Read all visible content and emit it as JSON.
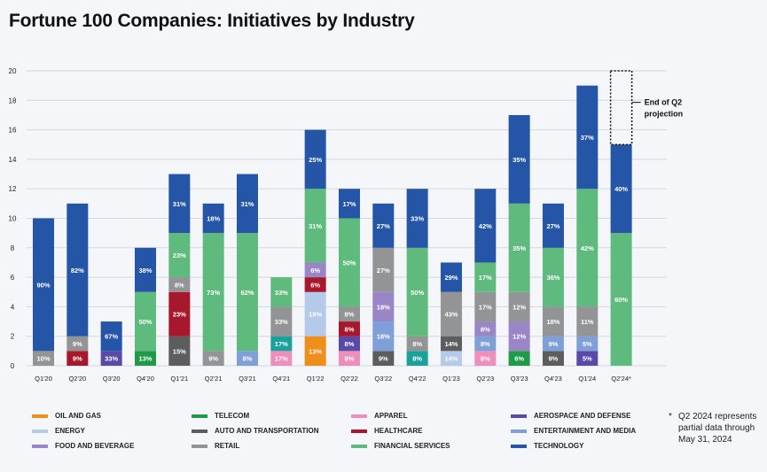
{
  "chart_data": {
    "type": "bar",
    "stacked": true,
    "title": "Fortune 100 Companies: Initiatives by Industry",
    "xlabel": "",
    "ylabel": "",
    "ylim": [
      0,
      20
    ],
    "yticks": [
      0,
      2,
      4,
      6,
      8,
      10,
      12,
      14,
      16,
      18,
      20
    ],
    "grid": true,
    "legend_position": "bottom",
    "categories": [
      "Q1'20",
      "Q2'20",
      "Q3'20",
      "Q4'20",
      "Q1'21",
      "Q2'21",
      "Q3'21",
      "Q4'21",
      "Q1'22",
      "Q2'22",
      "Q3'22",
      "Q4'22",
      "Q1'23",
      "Q2'23",
      "Q3'23",
      "Q4'23",
      "Q1'24",
      "Q2'24*"
    ],
    "industries": [
      {
        "key": "oil",
        "name": "OIL AND GAS",
        "color": "#ef8e1b"
      },
      {
        "key": "energy",
        "name": "ENERGY",
        "color": "#b5c9e8"
      },
      {
        "key": "food",
        "name": "FOOD AND BEVERAGE",
        "color": "#9a86c6"
      },
      {
        "key": "telecom",
        "name": "TELECOM",
        "color": "#1f9a48"
      },
      {
        "key": "auto",
        "name": "AUTO AND TRANSPORTATION",
        "color": "#5d5d5f"
      },
      {
        "key": "retail",
        "name": "RETAIL",
        "color": "#939496"
      },
      {
        "key": "apparel",
        "name": "APPAREL",
        "color": "#ee8fbb"
      },
      {
        "key": "healthcare",
        "name": "HEALTHCARE",
        "color": "#a8182c"
      },
      {
        "key": "financial",
        "name": "FINANCIAL SERVICES",
        "color": "#5fbb7d"
      },
      {
        "key": "aerospace",
        "name": "AEROSPACE AND DEFENSE",
        "color": "#5a4aa8"
      },
      {
        "key": "entertainment",
        "name": "ENTERTAINMENT AND MEDIA",
        "color": "#7f9fd8"
      },
      {
        "key": "technology",
        "name": "TECHNOLOGY",
        "color": "#2555a6"
      },
      {
        "key": "teal",
        "name": "",
        "color": "#1aa19b"
      }
    ],
    "bars": [
      {
        "category": "Q1'20",
        "segments": [
          {
            "key": "retail",
            "value": 1,
            "label": "10%"
          },
          {
            "key": "technology",
            "value": 9,
            "label": "90%"
          }
        ]
      },
      {
        "category": "Q2'20",
        "segments": [
          {
            "key": "healthcare",
            "value": 1,
            "label": "9%"
          },
          {
            "key": "retail",
            "value": 1,
            "label": "9%"
          },
          {
            "key": "technology",
            "value": 9,
            "label": "82%"
          }
        ]
      },
      {
        "category": "Q3'20",
        "segments": [
          {
            "key": "aerospace",
            "value": 1,
            "label": "33%"
          },
          {
            "key": "technology",
            "value": 2,
            "label": "67%"
          }
        ]
      },
      {
        "category": "Q4'20",
        "segments": [
          {
            "key": "telecom",
            "value": 1,
            "label": "13%"
          },
          {
            "key": "financial",
            "value": 4,
            "label": "50%"
          },
          {
            "key": "technology",
            "value": 3,
            "label": "38%"
          }
        ]
      },
      {
        "category": "Q1'21",
        "segments": [
          {
            "key": "auto",
            "value": 2,
            "label": "15%"
          },
          {
            "key": "healthcare",
            "value": 3,
            "label": "23%"
          },
          {
            "key": "retail",
            "value": 1,
            "label": "8%"
          },
          {
            "key": "financial",
            "value": 3,
            "label": "23%"
          },
          {
            "key": "technology",
            "value": 4,
            "label": "31%"
          }
        ]
      },
      {
        "category": "Q2'21",
        "segments": [
          {
            "key": "retail",
            "value": 1,
            "label": "9%"
          },
          {
            "key": "financial",
            "value": 8,
            "label": "73%"
          },
          {
            "key": "technology",
            "value": 2,
            "label": "18%"
          }
        ]
      },
      {
        "category": "Q3'21",
        "segments": [
          {
            "key": "entertainment",
            "value": 1,
            "label": "8%"
          },
          {
            "key": "financial",
            "value": 8,
            "label": "62%"
          },
          {
            "key": "technology",
            "value": 4,
            "label": "31%"
          }
        ]
      },
      {
        "category": "Q4'21",
        "segments": [
          {
            "key": "apparel",
            "value": 1,
            "label": "17%"
          },
          {
            "key": "teal",
            "value": 1,
            "label": "17%"
          },
          {
            "key": "retail",
            "value": 2,
            "label": "33%"
          },
          {
            "key": "financial",
            "value": 2,
            "label": "33%"
          }
        ]
      },
      {
        "category": "Q1'22",
        "segments": [
          {
            "key": "oil",
            "value": 2,
            "label": "13%"
          },
          {
            "key": "energy",
            "value": 3,
            "label": "19%"
          },
          {
            "key": "healthcare",
            "value": 1,
            "label": "6%"
          },
          {
            "key": "food",
            "value": 1,
            "label": "6%"
          },
          {
            "key": "financial",
            "value": 5,
            "label": "31%"
          },
          {
            "key": "technology",
            "value": 4,
            "label": "25%"
          }
        ]
      },
      {
        "category": "Q2'22",
        "segments": [
          {
            "key": "apparel",
            "value": 1,
            "label": "8%"
          },
          {
            "key": "aerospace",
            "value": 1,
            "label": "8%"
          },
          {
            "key": "healthcare",
            "value": 1,
            "label": "8%"
          },
          {
            "key": "retail",
            "value": 1,
            "label": "8%"
          },
          {
            "key": "financial",
            "value": 6,
            "label": "50%"
          },
          {
            "key": "technology",
            "value": 2,
            "label": "17%"
          }
        ]
      },
      {
        "category": "Q3'22",
        "segments": [
          {
            "key": "auto",
            "value": 1,
            "label": "9%"
          },
          {
            "key": "entertainment",
            "value": 2,
            "label": "18%"
          },
          {
            "key": "food",
            "value": 2,
            "label": "18%"
          },
          {
            "key": "retail",
            "value": 3,
            "label": "27%"
          },
          {
            "key": "technology",
            "value": 3,
            "label": "27%"
          }
        ]
      },
      {
        "category": "Q4'22",
        "segments": [
          {
            "key": "teal",
            "value": 1,
            "label": "8%"
          },
          {
            "key": "retail",
            "value": 1,
            "label": "8%"
          },
          {
            "key": "financial",
            "value": 6,
            "label": "50%"
          },
          {
            "key": "technology",
            "value": 4,
            "label": "33%"
          }
        ]
      },
      {
        "category": "Q1'23",
        "segments": [
          {
            "key": "energy",
            "value": 1,
            "label": "14%"
          },
          {
            "key": "auto",
            "value": 1,
            "label": "14%"
          },
          {
            "key": "retail",
            "value": 3,
            "label": "43%"
          },
          {
            "key": "technology",
            "value": 2,
            "label": "29%"
          }
        ]
      },
      {
        "category": "Q2'23",
        "segments": [
          {
            "key": "apparel",
            "value": 1,
            "label": "8%"
          },
          {
            "key": "entertainment",
            "value": 1,
            "label": "8%"
          },
          {
            "key": "food",
            "value": 1,
            "label": "8%"
          },
          {
            "key": "retail",
            "value": 2,
            "label": "17%"
          },
          {
            "key": "financial",
            "value": 2,
            "label": "17%"
          },
          {
            "key": "technology",
            "value": 5,
            "label": "42%"
          }
        ]
      },
      {
        "category": "Q3'23",
        "segments": [
          {
            "key": "telecom",
            "value": 1,
            "label": "6%"
          },
          {
            "key": "food",
            "value": 2,
            "label": "12%"
          },
          {
            "key": "retail",
            "value": 2,
            "label": "12%"
          },
          {
            "key": "financial",
            "value": 6,
            "label": "35%"
          },
          {
            "key": "technology",
            "value": 6,
            "label": "35%"
          }
        ]
      },
      {
        "category": "Q4'23",
        "segments": [
          {
            "key": "auto",
            "value": 1,
            "label": "9%"
          },
          {
            "key": "entertainment",
            "value": 1,
            "label": "9%"
          },
          {
            "key": "retail",
            "value": 2,
            "label": "18%"
          },
          {
            "key": "financial",
            "value": 4,
            "label": "36%"
          },
          {
            "key": "technology",
            "value": 3,
            "label": "27%"
          }
        ]
      },
      {
        "category": "Q1'24",
        "segments": [
          {
            "key": "aerospace",
            "value": 1,
            "label": "5%"
          },
          {
            "key": "entertainment",
            "value": 1,
            "label": "5%"
          },
          {
            "key": "retail",
            "value": 2,
            "label": "11%"
          },
          {
            "key": "financial",
            "value": 8,
            "label": "42%"
          },
          {
            "key": "technology",
            "value": 7,
            "label": "37%"
          }
        ]
      },
      {
        "category": "Q2'24*",
        "segments": [
          {
            "key": "financial",
            "value": 9,
            "label": "60%"
          },
          {
            "key": "technology",
            "value": 6,
            "label": "40%"
          }
        ]
      }
    ],
    "projection": {
      "category": "Q2'24*",
      "from": 15,
      "to": 20,
      "label_line1": "End of Q2",
      "label_line2": "projection"
    },
    "footnote": {
      "marker": "*",
      "text": "Q2 2024 represents partial data through May 31, 2024"
    }
  },
  "legend": [
    {
      "name": "OIL AND GAS",
      "color": "#ef8e1b"
    },
    {
      "name": "ENERGY",
      "color": "#b5c9e8"
    },
    {
      "name": "FOOD AND BEVERAGE",
      "color": "#9a86c6"
    },
    {
      "name": "TELECOM",
      "color": "#1f9a48"
    },
    {
      "name": "AUTO AND TRANSPORTATION",
      "color": "#5d5d5f"
    },
    {
      "name": "RETAIL",
      "color": "#939496"
    },
    {
      "name": "APPAREL",
      "color": "#ee8fbb"
    },
    {
      "name": "HEALTHCARE",
      "color": "#a8182c"
    },
    {
      "name": "FINANCIAL SERVICES",
      "color": "#5fbb7d"
    },
    {
      "name": "AEROSPACE AND DEFENSE",
      "color": "#5a4aa8"
    },
    {
      "name": "ENTERTAINMENT AND MEDIA",
      "color": "#7f9fd8"
    },
    {
      "name": "TECHNOLOGY",
      "color": "#2555a6"
    }
  ]
}
